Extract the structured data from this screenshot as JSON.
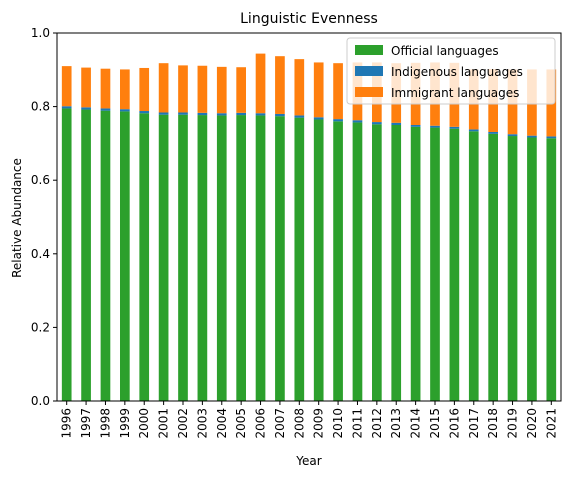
{
  "chart_data": {
    "type": "bar",
    "stacked": true,
    "title": "Linguistic Evenness",
    "xlabel": "Year",
    "ylabel": "Relative Abundance",
    "ylim": [
      0,
      1.0
    ],
    "yticks": [
      "0.0",
      "0.2",
      "0.4",
      "0.6",
      "0.8",
      "1.0"
    ],
    "grid": false,
    "legend_position": "top-right",
    "categories": [
      "1996",
      "1997",
      "1998",
      "1999",
      "2000",
      "2001",
      "2002",
      "2003",
      "2004",
      "2005",
      "2006",
      "2007",
      "2008",
      "2009",
      "2010",
      "2011",
      "2012",
      "2013",
      "2014",
      "2015",
      "2016",
      "2017",
      "2018",
      "2019",
      "2020",
      "2021"
    ],
    "series": [
      {
        "name": "Official languages",
        "color": "#2ca02c",
        "values": [
          0.795,
          0.792,
          0.789,
          0.787,
          0.782,
          0.778,
          0.778,
          0.777,
          0.776,
          0.777,
          0.776,
          0.774,
          0.77,
          0.765,
          0.76,
          0.757,
          0.752,
          0.75,
          0.745,
          0.743,
          0.74,
          0.733,
          0.726,
          0.72,
          0.716,
          0.714
        ]
      },
      {
        "name": "Indigenous languages",
        "color": "#1f77b4",
        "values": [
          0.006,
          0.006,
          0.006,
          0.006,
          0.006,
          0.006,
          0.006,
          0.006,
          0.006,
          0.006,
          0.006,
          0.006,
          0.006,
          0.006,
          0.006,
          0.006,
          0.006,
          0.006,
          0.005,
          0.005,
          0.005,
          0.005,
          0.005,
          0.005,
          0.005,
          0.005
        ]
      },
      {
        "name": "Immigrant languages",
        "color": "#ff7f0e",
        "values": [
          0.109,
          0.108,
          0.108,
          0.108,
          0.117,
          0.134,
          0.128,
          0.128,
          0.126,
          0.124,
          0.162,
          0.157,
          0.153,
          0.149,
          0.152,
          0.157,
          0.162,
          0.162,
          0.169,
          0.172,
          0.174,
          0.163,
          0.171,
          0.176,
          0.18,
          0.182
        ]
      }
    ]
  }
}
